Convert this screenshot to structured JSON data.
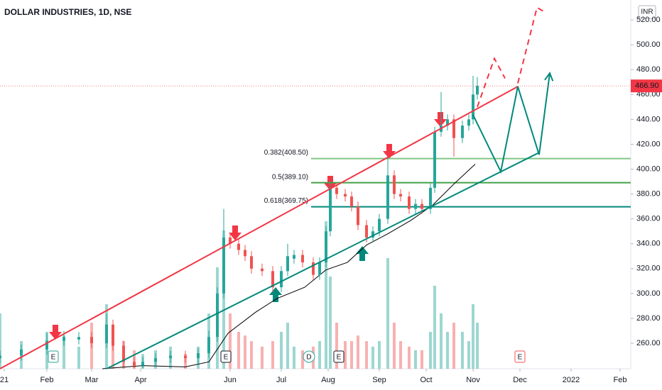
{
  "chart_data": {
    "type": "candlestick",
    "title": "DOLLAR INDUSTRIES, 1D, NSE",
    "currency": "INR",
    "x": [
      0,
      10,
      22,
      30,
      37,
      43,
      50,
      53,
      58,
      63,
      67,
      73,
      80,
      87,
      93,
      98,
      102,
      105,
      108,
      112,
      115,
      118,
      123,
      128,
      132,
      135,
      138,
      142,
      147,
      150,
      153,
      155,
      158,
      162,
      165,
      168,
      172,
      175,
      178,
      182,
      185,
      188,
      192,
      195,
      198,
      202,
      204,
      207,
      210,
      213,
      217,
      220,
      222,
      224
    ],
    "open": [
      248,
      250,
      255,
      262,
      263,
      265,
      260,
      275,
      258,
      245,
      242,
      245,
      248,
      250,
      248,
      252,
      265,
      300,
      345,
      340,
      335,
      330,
      320,
      318,
      305,
      318,
      328,
      331,
      325,
      315,
      325,
      350,
      385,
      380,
      378,
      370,
      355,
      345,
      350,
      360,
      395,
      380,
      378,
      368,
      372,
      368,
      385,
      430,
      435,
      440,
      425,
      435,
      440,
      460
    ],
    "high": [
      254,
      259,
      268,
      270,
      269,
      269,
      284,
      279,
      262,
      249,
      249,
      252,
      254,
      254,
      256,
      270,
      305,
      368,
      349,
      344,
      339,
      334,
      324,
      322,
      322,
      340,
      335,
      335,
      329,
      329,
      354,
      390,
      389,
      384,
      382,
      374,
      359,
      354,
      364,
      410,
      399,
      384,
      382,
      376,
      376,
      389,
      434,
      462,
      444,
      444,
      439,
      444,
      475,
      474
    ],
    "low": [
      244,
      246,
      251,
      258,
      259,
      256,
      256,
      254,
      241,
      240,
      240,
      241,
      244,
      244,
      244,
      248,
      261,
      296,
      336,
      331,
      326,
      316,
      314,
      301,
      301,
      314,
      324,
      321,
      311,
      311,
      321,
      346,
      376,
      374,
      366,
      351,
      341,
      341,
      346,
      356,
      376,
      374,
      364,
      364,
      364,
      364,
      381,
      426,
      431,
      410,
      421,
      431,
      436,
      456
    ],
    "close": [
      250,
      255,
      262,
      265,
      265,
      260,
      275,
      258,
      245,
      242,
      245,
      248,
      250,
      248,
      252,
      265,
      300,
      345,
      340,
      335,
      330,
      320,
      318,
      305,
      318,
      330,
      331,
      325,
      315,
      325,
      350,
      385,
      380,
      378,
      370,
      355,
      345,
      350,
      360,
      395,
      380,
      378,
      368,
      372,
      368,
      385,
      430,
      435,
      440,
      425,
      435,
      440,
      460,
      467
    ],
    "volume": [
      30,
      15,
      20,
      18,
      12,
      25,
      35,
      20,
      15,
      10,
      8,
      10,
      12,
      8,
      12,
      30,
      55,
      75,
      30,
      20,
      18,
      15,
      12,
      15,
      20,
      25,
      12,
      10,
      12,
      15,
      80,
      50,
      25,
      15,
      15,
      18,
      15,
      12,
      15,
      60,
      25,
      15,
      12,
      10,
      10,
      20,
      45,
      30,
      20,
      25,
      20,
      15,
      35,
      25
    ],
    "up_color": "#26a69a",
    "down_color": "#ef5350",
    "vlim": [
      0,
      100
    ],
    "xlim": [
      0,
      296
    ],
    "xticks": [
      {
        "value": 2,
        "label": "21"
      },
      {
        "value": 22,
        "label": "Feb"
      },
      {
        "value": 43,
        "label": "Mar"
      },
      {
        "value": 66,
        "label": "Apr"
      },
      {
        "value": 108,
        "label": "Jun"
      },
      {
        "value": 132,
        "label": "Jul"
      },
      {
        "value": 154,
        "label": "Aug"
      },
      {
        "value": 178,
        "label": "Sep"
      },
      {
        "value": 200,
        "label": "Oct"
      },
      {
        "value": 222,
        "label": "Nov"
      },
      {
        "value": 244,
        "label": "Dec"
      },
      {
        "value": 268,
        "label": "2022"
      },
      {
        "value": 291,
        "label": "Feb"
      }
    ],
    "ylim": [
      239.5,
      536
    ],
    "yticks": [
      {
        "value": 260,
        "label": "260.00"
      },
      {
        "value": 280,
        "label": "280.00"
      },
      {
        "value": 300,
        "label": "300.00"
      },
      {
        "value": 320,
        "label": "320.00"
      },
      {
        "value": 340,
        "label": "340.00"
      },
      {
        "value": 360,
        "label": "360.00"
      },
      {
        "value": 380,
        "label": "380.00"
      },
      {
        "value": 400,
        "label": "400.00"
      },
      {
        "value": 420,
        "label": "420.00"
      },
      {
        "value": 440,
        "label": "440.00"
      },
      {
        "value": 460,
        "label": "460.00"
      },
      {
        "value": 480,
        "label": "480.00"
      },
      {
        "value": 500,
        "label": "500.00"
      },
      {
        "value": 520,
        "label": "520.00"
      }
    ],
    "grid": false,
    "last_price": 466.9,
    "last_price_label": "466.90",
    "last_price_color": "#f23645",
    "moving_average": {
      "color": "#000000",
      "x": [
        48,
        67,
        87,
        98,
        107,
        120,
        130,
        143,
        153,
        163,
        172,
        182,
        193,
        203,
        213,
        223
      ],
      "values": [
        239.5,
        242,
        241,
        245,
        268,
        285,
        296,
        305,
        319,
        325,
        339,
        348,
        359,
        371,
        388,
        404
      ]
    },
    "fib_levels": [
      {
        "value": 408.5,
        "label": "0.382(408.50)",
        "color": "#81c784"
      },
      {
        "value": 389.1,
        "label": "0.5(389.10)",
        "color": "#43a047"
      },
      {
        "value": 369.75,
        "label": "0.618(369.75)",
        "color": "#00897b"
      }
    ],
    "trend_lines": [
      {
        "color": "#f23645",
        "dashed": false,
        "x": [
          0,
          243
        ],
        "values": [
          239.5,
          466.4
        ]
      },
      {
        "color": "#00897b",
        "dashed": false,
        "x": [
          50,
          253
        ],
        "values": [
          239.5,
          413.3
        ]
      },
      {
        "color": "#00897b",
        "dashed": false,
        "arrow": true,
        "x": [
          222,
          235,
          243,
          253,
          258
        ],
        "values": [
          443.6,
          398,
          466.4,
          411.6,
          477.2
        ]
      },
      {
        "color": "#f23645",
        "dashed": true,
        "x": [
          224,
          232,
          237,
          240,
          243,
          252,
          255
        ],
        "values": [
          450,
          489,
          473,
          null,
          469,
          530,
          527
        ]
      }
    ],
    "events": [
      {
        "x": 25,
        "label": "E",
        "color": "#26a69a"
      },
      {
        "x": 106,
        "label": "E",
        "color": "#131722"
      },
      {
        "x": 145,
        "label": "D",
        "color": "#26a69a"
      },
      {
        "x": 159,
        "label": "E",
        "color": "#131722"
      },
      {
        "x": 244,
        "label": "E",
        "color": "#ef5350"
      }
    ]
  }
}
